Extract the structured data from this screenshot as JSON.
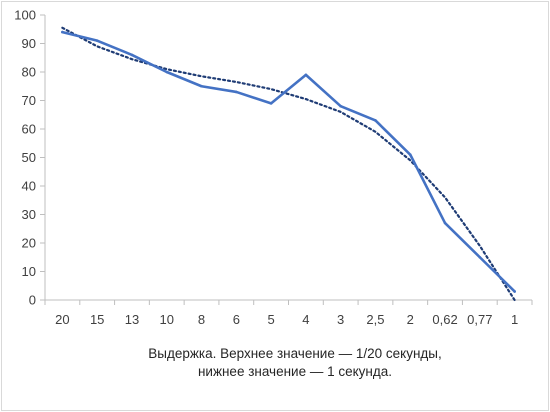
{
  "chart_data": {
    "type": "line",
    "categories": [
      "20",
      "15",
      "13",
      "10",
      "8",
      "6",
      "5",
      "4",
      "3",
      "2,5",
      "2",
      "0,62",
      "0,77",
      "1"
    ],
    "series": [
      {
        "values": [
          94,
          91,
          86,
          80,
          75,
          73,
          69,
          79,
          68,
          63,
          51,
          27,
          15,
          3
        ],
        "color": "#4472c4",
        "style": "solid"
      }
    ],
    "trendline": {
      "values": [
        95.5,
        89,
        84.5,
        81,
        78.5,
        76.5,
        74,
        70.5,
        66,
        59,
        49,
        36,
        19,
        0
      ],
      "color": "#1f3c75",
      "style": "dotted"
    },
    "ylim": [
      0,
      100
    ],
    "yticks": [
      0,
      10,
      20,
      30,
      40,
      50,
      60,
      70,
      80,
      90,
      100
    ],
    "grid": false,
    "legend": "none",
    "xlabel_line1": "Выдержка. Верхнее значение — 1/20 секунды,",
    "xlabel_line2": "нижнее значение — 1 секунда."
  }
}
